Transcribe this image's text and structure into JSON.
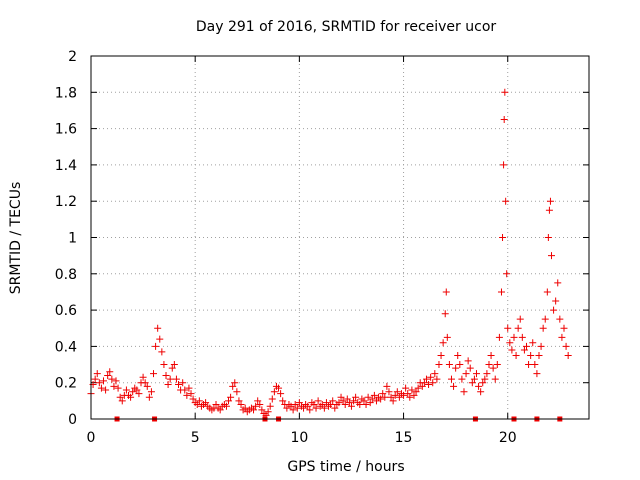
{
  "chart_data": {
    "type": "scatter",
    "title": "Day 291 of 2016, SRMTID for receiver ucor",
    "xlabel": "GPS time / hours",
    "ylabel": "SRMTID / TECUs",
    "xlim": [
      0,
      23.9
    ],
    "ylim": [
      0,
      2
    ],
    "xticks": [
      0,
      5,
      10,
      15,
      20
    ],
    "xtick_labels": [
      "0",
      "5",
      "10",
      "15",
      "20"
    ],
    "yticks": [
      0,
      0.2,
      0.4,
      0.6,
      0.8,
      1,
      1.2,
      1.4,
      1.6,
      1.8,
      2
    ],
    "ytick_labels": [
      "0",
      "0.2",
      "0.4",
      "0.6",
      "0.8",
      "1",
      "1.2",
      "1.4",
      "1.6",
      "1.8",
      "2"
    ],
    "grid": true,
    "marker": "+",
    "color": "#ee0000",
    "series": [
      {
        "name": "SRMTID",
        "points": [
          [
            0.0,
            0.14
          ],
          [
            0.1,
            0.19
          ],
          [
            0.2,
            0.22
          ],
          [
            0.3,
            0.25
          ],
          [
            0.4,
            0.2
          ],
          [
            0.5,
            0.17
          ],
          [
            0.6,
            0.21
          ],
          [
            0.7,
            0.16
          ],
          [
            0.8,
            0.24
          ],
          [
            0.9,
            0.26
          ],
          [
            1.0,
            0.22
          ],
          [
            1.1,
            0.18
          ],
          [
            1.2,
            0.21
          ],
          [
            1.3,
            0.17
          ],
          [
            1.4,
            0.12
          ],
          [
            1.5,
            0.1
          ],
          [
            1.6,
            0.13
          ],
          [
            1.7,
            0.16
          ],
          [
            1.8,
            0.13
          ],
          [
            1.9,
            0.12
          ],
          [
            2.0,
            0.15
          ],
          [
            2.1,
            0.17
          ],
          [
            2.2,
            0.16
          ],
          [
            2.3,
            0.14
          ],
          [
            2.4,
            0.2
          ],
          [
            2.5,
            0.23
          ],
          [
            2.6,
            0.2
          ],
          [
            2.7,
            0.18
          ],
          [
            2.8,
            0.12
          ],
          [
            2.9,
            0.15
          ],
          [
            3.0,
            0.25
          ],
          [
            3.1,
            0.4
          ],
          [
            3.2,
            0.5
          ],
          [
            3.3,
            0.44
          ],
          [
            3.4,
            0.37
          ],
          [
            3.5,
            0.3
          ],
          [
            3.6,
            0.24
          ],
          [
            3.7,
            0.19
          ],
          [
            3.8,
            0.22
          ],
          [
            3.9,
            0.28
          ],
          [
            4.0,
            0.3
          ],
          [
            4.1,
            0.22
          ],
          [
            4.2,
            0.19
          ],
          [
            4.3,
            0.16
          ],
          [
            4.4,
            0.2
          ],
          [
            4.5,
            0.16
          ],
          [
            4.6,
            0.13
          ],
          [
            4.7,
            0.17
          ],
          [
            4.8,
            0.14
          ],
          [
            4.9,
            0.11
          ],
          [
            5.0,
            0.09
          ],
          [
            5.1,
            0.08
          ],
          [
            5.2,
            0.1
          ],
          [
            5.3,
            0.07
          ],
          [
            5.4,
            0.08
          ],
          [
            5.5,
            0.09
          ],
          [
            5.6,
            0.07
          ],
          [
            5.7,
            0.06
          ],
          [
            5.8,
            0.05
          ],
          [
            5.9,
            0.06
          ],
          [
            6.0,
            0.08
          ],
          [
            6.1,
            0.06
          ],
          [
            6.2,
            0.05
          ],
          [
            6.3,
            0.07
          ],
          [
            6.4,
            0.08
          ],
          [
            6.5,
            0.07
          ],
          [
            6.6,
            0.1
          ],
          [
            6.7,
            0.12
          ],
          [
            6.8,
            0.18
          ],
          [
            6.9,
            0.2
          ],
          [
            7.0,
            0.15
          ],
          [
            7.1,
            0.1
          ],
          [
            7.2,
            0.08
          ],
          [
            7.3,
            0.05
          ],
          [
            7.4,
            0.06
          ],
          [
            7.5,
            0.04
          ],
          [
            7.6,
            0.05
          ],
          [
            7.7,
            0.06
          ],
          [
            7.8,
            0.05
          ],
          [
            7.9,
            0.07
          ],
          [
            8.0,
            0.1
          ],
          [
            8.1,
            0.08
          ],
          [
            8.2,
            0.05
          ],
          [
            8.3,
            0.03
          ],
          [
            8.4,
            0.02
          ],
          [
            8.5,
            0.04
          ],
          [
            8.6,
            0.07
          ],
          [
            8.7,
            0.11
          ],
          [
            8.8,
            0.15
          ],
          [
            8.9,
            0.18
          ],
          [
            9.0,
            0.17
          ],
          [
            9.1,
            0.14
          ],
          [
            9.2,
            0.1
          ],
          [
            9.3,
            0.08
          ],
          [
            9.4,
            0.06
          ],
          [
            9.5,
            0.08
          ],
          [
            9.6,
            0.07
          ],
          [
            9.7,
            0.05
          ],
          [
            9.8,
            0.08
          ],
          [
            9.9,
            0.06
          ],
          [
            10.0,
            0.09
          ],
          [
            10.1,
            0.07
          ],
          [
            10.2,
            0.06
          ],
          [
            10.3,
            0.08
          ],
          [
            10.4,
            0.07
          ],
          [
            10.5,
            0.05
          ],
          [
            10.6,
            0.09
          ],
          [
            10.7,
            0.08
          ],
          [
            10.8,
            0.06
          ],
          [
            10.9,
            0.1
          ],
          [
            11.0,
            0.07
          ],
          [
            11.1,
            0.08
          ],
          [
            11.2,
            0.06
          ],
          [
            11.3,
            0.09
          ],
          [
            11.4,
            0.07
          ],
          [
            11.5,
            0.08
          ],
          [
            11.6,
            0.1
          ],
          [
            11.7,
            0.06
          ],
          [
            11.8,
            0.08
          ],
          [
            11.9,
            0.09
          ],
          [
            12.0,
            0.12
          ],
          [
            12.1,
            0.1
          ],
          [
            12.2,
            0.08
          ],
          [
            12.3,
            0.11
          ],
          [
            12.4,
            0.09
          ],
          [
            12.5,
            0.07
          ],
          [
            12.6,
            0.1
          ],
          [
            12.7,
            0.12
          ],
          [
            12.8,
            0.09
          ],
          [
            12.9,
            0.08
          ],
          [
            13.0,
            0.11
          ],
          [
            13.1,
            0.1
          ],
          [
            13.2,
            0.08
          ],
          [
            13.3,
            0.12
          ],
          [
            13.4,
            0.09
          ],
          [
            13.5,
            0.11
          ],
          [
            13.6,
            0.13
          ],
          [
            13.7,
            0.1
          ],
          [
            13.8,
            0.12
          ],
          [
            13.9,
            0.11
          ],
          [
            14.0,
            0.14
          ],
          [
            14.1,
            0.12
          ],
          [
            14.2,
            0.18
          ],
          [
            14.3,
            0.15
          ],
          [
            14.4,
            0.12
          ],
          [
            14.5,
            0.1
          ],
          [
            14.6,
            0.13
          ],
          [
            14.7,
            0.15
          ],
          [
            14.8,
            0.12
          ],
          [
            14.9,
            0.14
          ],
          [
            15.0,
            0.13
          ],
          [
            15.1,
            0.17
          ],
          [
            15.2,
            0.14
          ],
          [
            15.3,
            0.12
          ],
          [
            15.4,
            0.16
          ],
          [
            15.5,
            0.13
          ],
          [
            15.6,
            0.15
          ],
          [
            15.7,
            0.17
          ],
          [
            15.8,
            0.2
          ],
          [
            15.9,
            0.18
          ],
          [
            16.0,
            0.2
          ],
          [
            16.1,
            0.22
          ],
          [
            16.2,
            0.19
          ],
          [
            16.3,
            0.23
          ],
          [
            16.4,
            0.2
          ],
          [
            16.5,
            0.25
          ],
          [
            16.6,
            0.22
          ],
          [
            16.7,
            0.3
          ],
          [
            16.8,
            0.35
          ],
          [
            16.9,
            0.42
          ],
          [
            17.0,
            0.58
          ],
          [
            17.05,
            0.7
          ],
          [
            17.1,
            0.45
          ],
          [
            17.2,
            0.3
          ],
          [
            17.3,
            0.22
          ],
          [
            17.4,
            0.18
          ],
          [
            17.5,
            0.28
          ],
          [
            17.6,
            0.35
          ],
          [
            17.7,
            0.3
          ],
          [
            17.8,
            0.22
          ],
          [
            17.9,
            0.15
          ],
          [
            18.0,
            0.25
          ],
          [
            18.1,
            0.32
          ],
          [
            18.2,
            0.28
          ],
          [
            18.3,
            0.2
          ],
          [
            18.4,
            0.22
          ],
          [
            18.5,
            0.25
          ],
          [
            18.6,
            0.18
          ],
          [
            18.7,
            0.15
          ],
          [
            18.8,
            0.2
          ],
          [
            18.9,
            0.22
          ],
          [
            19.0,
            0.25
          ],
          [
            19.1,
            0.3
          ],
          [
            19.2,
            0.35
          ],
          [
            19.3,
            0.28
          ],
          [
            19.4,
            0.22
          ],
          [
            19.5,
            0.3
          ],
          [
            19.6,
            0.45
          ],
          [
            19.7,
            0.7
          ],
          [
            19.75,
            1.0
          ],
          [
            19.8,
            1.4
          ],
          [
            19.83,
            1.65
          ],
          [
            19.86,
            1.8
          ],
          [
            19.9,
            1.2
          ],
          [
            19.95,
            0.8
          ],
          [
            20.0,
            0.5
          ],
          [
            20.1,
            0.42
          ],
          [
            20.2,
            0.38
          ],
          [
            20.3,
            0.45
          ],
          [
            20.4,
            0.35
          ],
          [
            20.5,
            0.5
          ],
          [
            20.6,
            0.55
          ],
          [
            20.7,
            0.45
          ],
          [
            20.8,
            0.38
          ],
          [
            20.9,
            0.4
          ],
          [
            21.0,
            0.3
          ],
          [
            21.1,
            0.35
          ],
          [
            21.2,
            0.42
          ],
          [
            21.3,
            0.3
          ],
          [
            21.4,
            0.25
          ],
          [
            21.5,
            0.35
          ],
          [
            21.6,
            0.4
          ],
          [
            21.7,
            0.5
          ],
          [
            21.8,
            0.55
          ],
          [
            21.9,
            0.7
          ],
          [
            21.95,
            1.0
          ],
          [
            22.0,
            1.15
          ],
          [
            22.05,
            1.2
          ],
          [
            22.1,
            0.9
          ],
          [
            22.2,
            0.6
          ],
          [
            22.3,
            0.65
          ],
          [
            22.4,
            0.75
          ],
          [
            22.5,
            0.55
          ],
          [
            22.6,
            0.45
          ],
          [
            22.7,
            0.5
          ],
          [
            22.8,
            0.4
          ],
          [
            22.9,
            0.35
          ]
        ]
      }
    ],
    "zero_markers_x": [
      1.25,
      3.05,
      8.35,
      9.0,
      18.45,
      20.3,
      21.4,
      22.5
    ]
  }
}
